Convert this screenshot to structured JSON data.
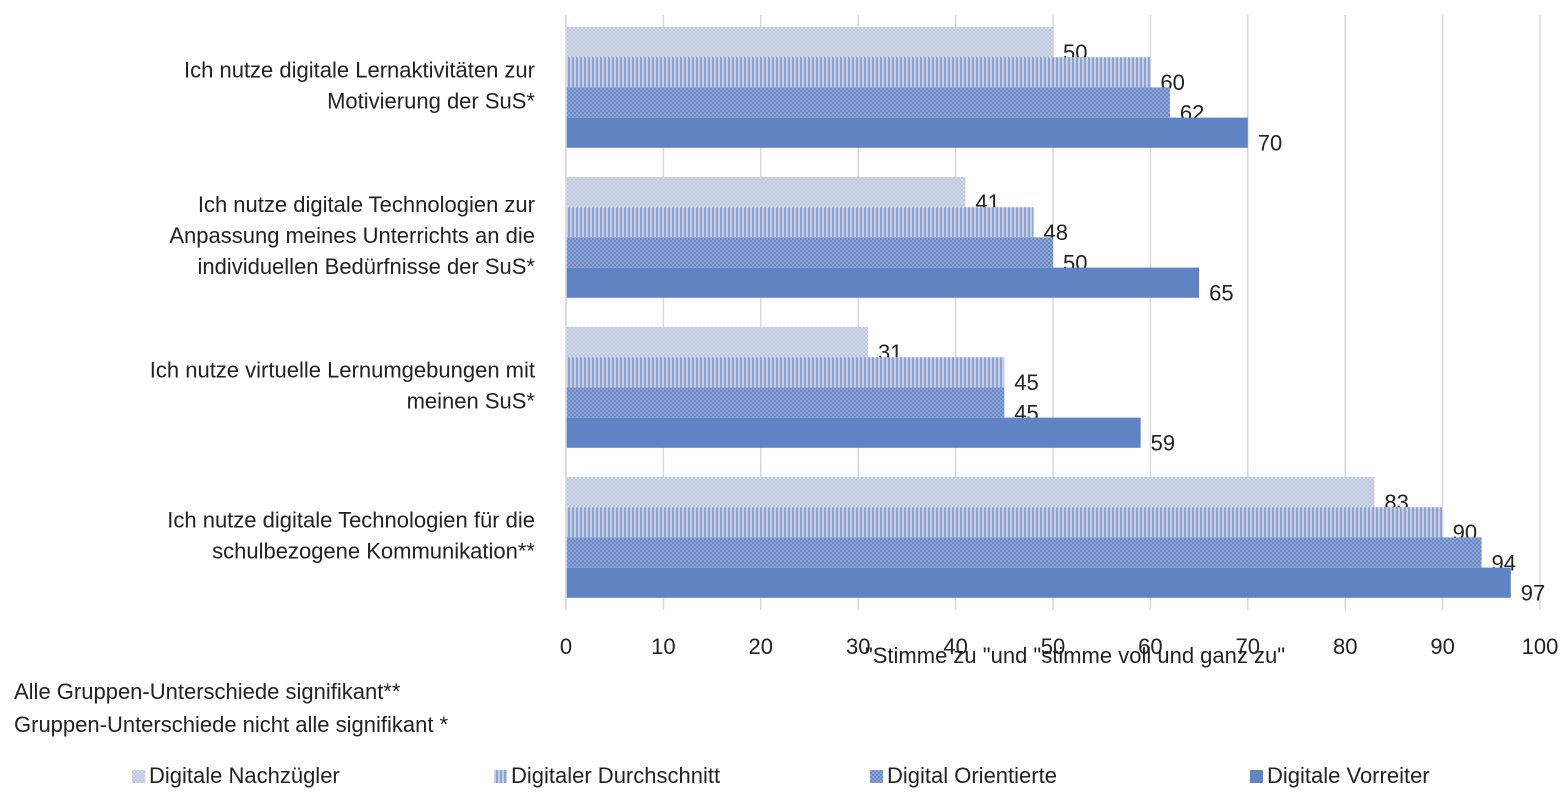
{
  "chart_data": {
    "type": "barh",
    "categories": [
      [
        "Ich nutze digitale Lernaktivitäten zur",
        "Motivierung der SuS*"
      ],
      [
        "Ich nutze digitale Technologien zur",
        "Anpassung meines Unterrichts an die",
        "individuellen Bedürfnisse der SuS*"
      ],
      [
        "Ich nutze virtuelle Lernumgebungen mit",
        "meinen SuS*"
      ],
      [
        "Ich nutze digitale Technologien für die",
        "schulbezogene Kommunikation**"
      ]
    ],
    "series": [
      {
        "name": "Digitale Nachzügler",
        "color": "#c8d2e6",
        "pattern": "crosshatch",
        "values": [
          50,
          41,
          31,
          83
        ]
      },
      {
        "name": "Digitaler Durchschnitt",
        "color": "#a6b7da",
        "pattern": "vertical",
        "values": [
          60,
          48,
          45,
          90
        ]
      },
      {
        "name": "Digital Orientierte",
        "color": "#7d98cf",
        "pattern": "dots",
        "values": [
          62,
          50,
          45,
          94
        ]
      },
      {
        "name": "Digitale Vorreiter",
        "color": "#6083c4",
        "pattern": "solid",
        "values": [
          70,
          65,
          59,
          97
        ]
      }
    ],
    "xlabel": "\"Stimme zu \"und \"stimme voll und ganz zu\"",
    "notes": [
      "Alle Gruppen-Unterschiede signifikant**",
      "Gruppen-Unterschiede nicht alle signifikant *"
    ],
    "xlim": [
      0,
      100
    ],
    "xticks": [
      0,
      10,
      20,
      30,
      40,
      50,
      60,
      70,
      80,
      90,
      100
    ],
    "grid": true,
    "legend": "bottom"
  }
}
